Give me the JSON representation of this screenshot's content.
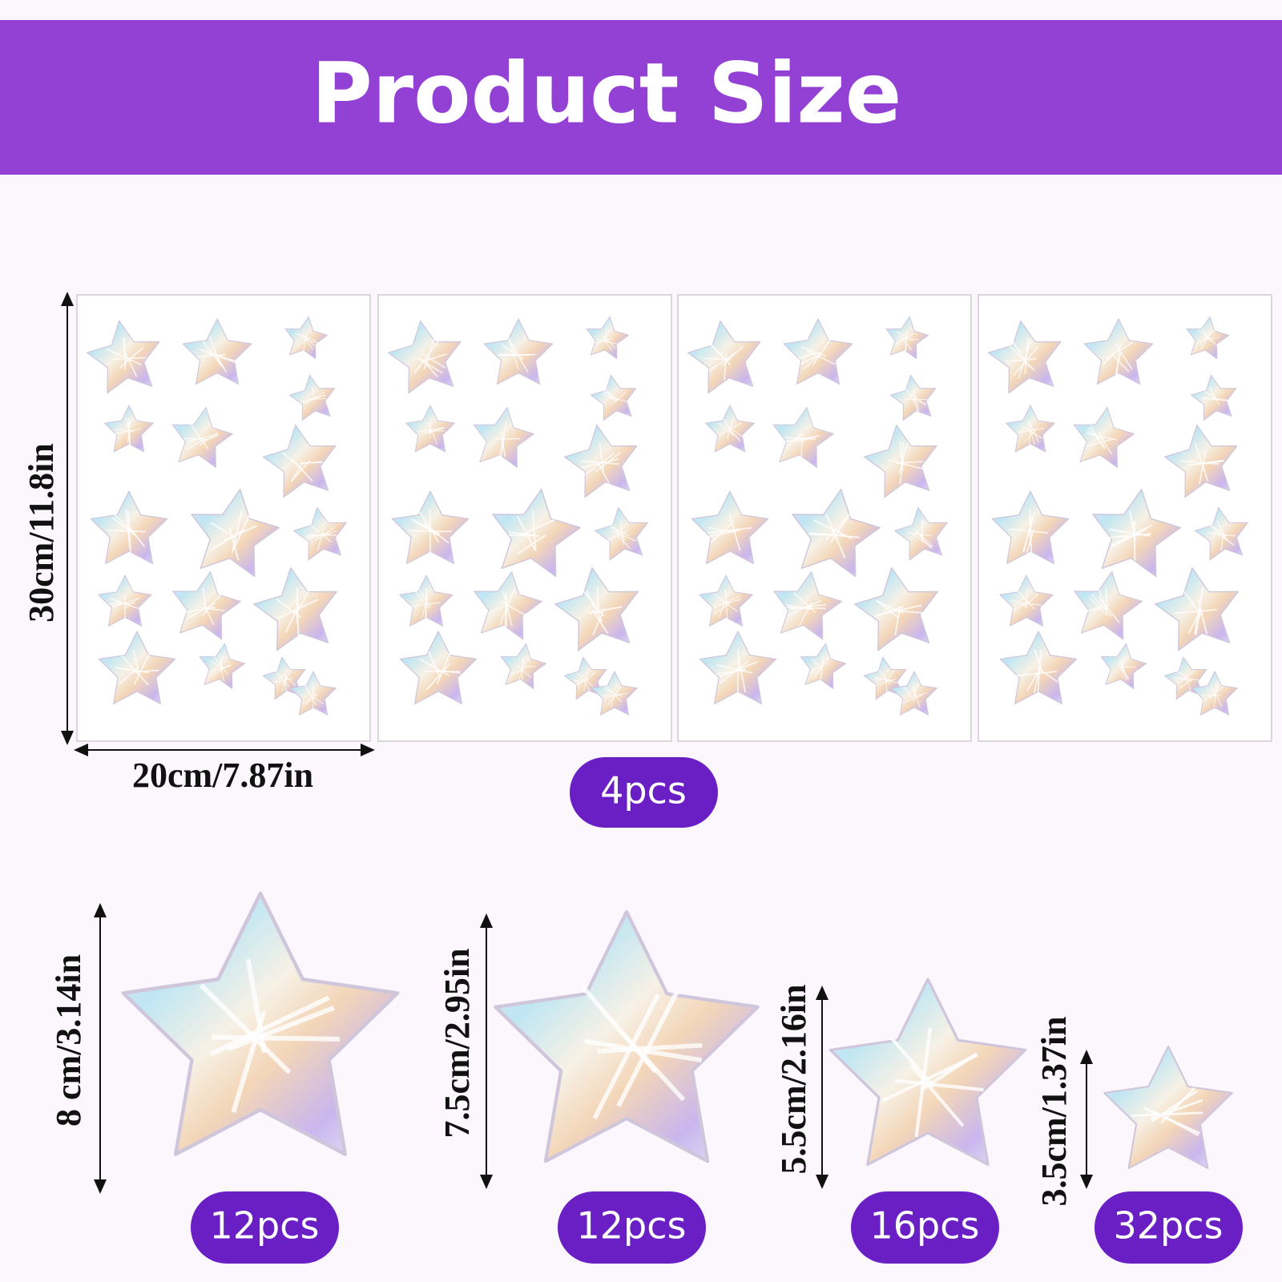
{
  "header": {
    "title": "Product Size"
  },
  "sheet": {
    "height_label": "30cm/11.8in",
    "width_label": "20cm/7.87in",
    "quantity": "4pcs"
  },
  "stars": [
    {
      "size_label": "8 cm/3.14in",
      "quantity": "12pcs"
    },
    {
      "size_label": "7.5cm/2.95in",
      "quantity": "12pcs"
    },
    {
      "size_label": "5.5cm/2.16in",
      "quantity": "16pcs"
    },
    {
      "size_label": "3.5cm/1.37in",
      "quantity": "32pcs"
    }
  ]
}
